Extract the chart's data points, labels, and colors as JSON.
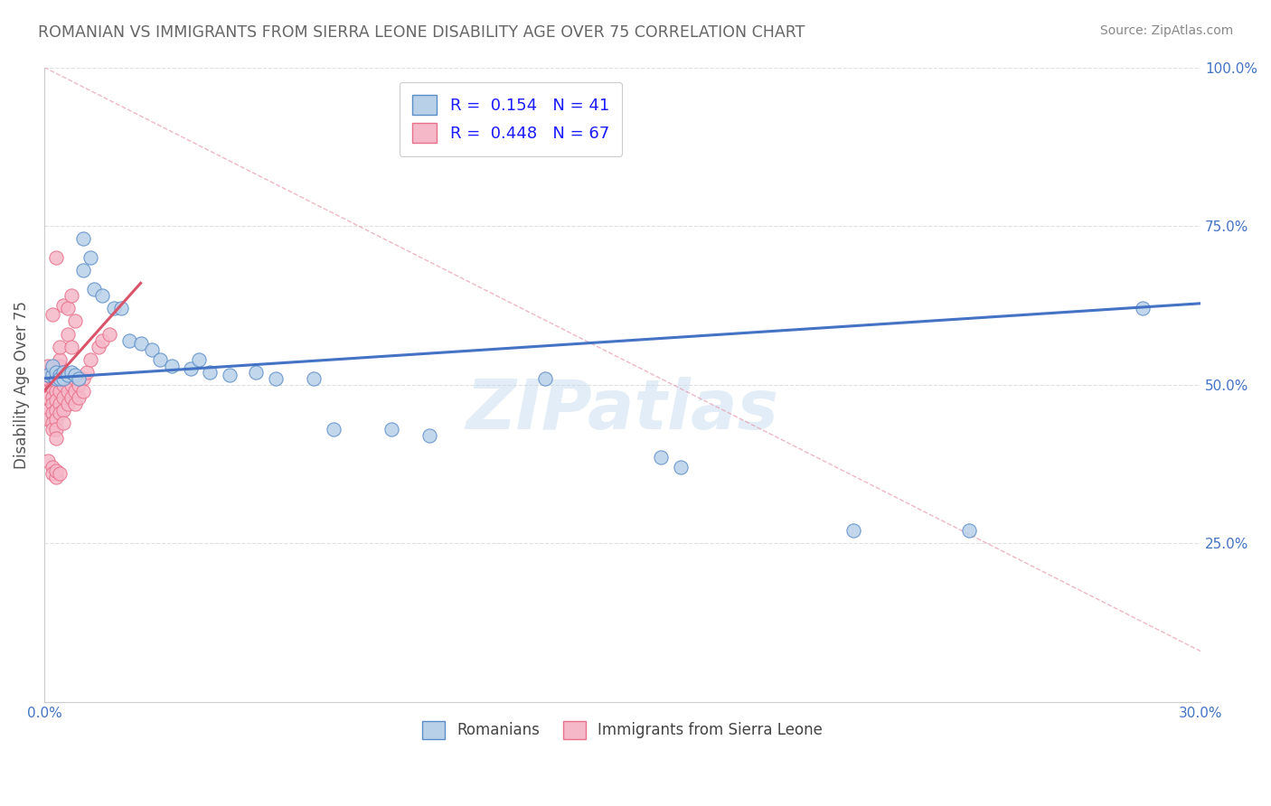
{
  "title": "ROMANIAN VS IMMIGRANTS FROM SIERRA LEONE DISABILITY AGE OVER 75 CORRELATION CHART",
  "source": "Source: ZipAtlas.com",
  "ylabel": "Disability Age Over 75",
  "xlim": [
    0.0,
    0.3
  ],
  "ylim": [
    0.0,
    1.0
  ],
  "blue_r": 0.154,
  "blue_n": 41,
  "pink_r": 0.448,
  "pink_n": 67,
  "blue_color": "#b8d0e8",
  "pink_color": "#f5b8c8",
  "blue_edge_color": "#5b8dc8",
  "pink_edge_color": "#e8708a",
  "blue_line_color": "#4472c4",
  "pink_line_color": "#d9546a",
  "diag_color": "#f0a0b0",
  "watermark": "ZIPatlas",
  "background_color": "#ffffff",
  "grid_color": "#dddddd",
  "blue_scatter": [
    [
      0.001,
      0.515
    ],
    [
      0.002,
      0.515
    ],
    [
      0.002,
      0.53
    ],
    [
      0.003,
      0.51
    ],
    [
      0.003,
      0.52
    ],
    [
      0.004,
      0.515
    ],
    [
      0.004,
      0.51
    ],
    [
      0.005,
      0.52
    ],
    [
      0.005,
      0.51
    ],
    [
      0.006,
      0.515
    ],
    [
      0.007,
      0.52
    ],
    [
      0.008,
      0.515
    ],
    [
      0.009,
      0.51
    ],
    [
      0.01,
      0.68
    ],
    [
      0.01,
      0.73
    ],
    [
      0.012,
      0.7
    ],
    [
      0.013,
      0.65
    ],
    [
      0.015,
      0.64
    ],
    [
      0.018,
      0.62
    ],
    [
      0.02,
      0.62
    ],
    [
      0.022,
      0.57
    ],
    [
      0.025,
      0.565
    ],
    [
      0.028,
      0.555
    ],
    [
      0.03,
      0.54
    ],
    [
      0.033,
      0.53
    ],
    [
      0.038,
      0.525
    ],
    [
      0.04,
      0.54
    ],
    [
      0.043,
      0.52
    ],
    [
      0.048,
      0.515
    ],
    [
      0.055,
      0.52
    ],
    [
      0.06,
      0.51
    ],
    [
      0.07,
      0.51
    ],
    [
      0.075,
      0.43
    ],
    [
      0.09,
      0.43
    ],
    [
      0.1,
      0.42
    ],
    [
      0.13,
      0.51
    ],
    [
      0.16,
      0.385
    ],
    [
      0.165,
      0.37
    ],
    [
      0.21,
      0.27
    ],
    [
      0.24,
      0.27
    ],
    [
      0.285,
      0.62
    ]
  ],
  "pink_scatter": [
    [
      0.001,
      0.5
    ],
    [
      0.001,
      0.51
    ],
    [
      0.001,
      0.52
    ],
    [
      0.001,
      0.49
    ],
    [
      0.001,
      0.48
    ],
    [
      0.001,
      0.53
    ],
    [
      0.001,
      0.46
    ],
    [
      0.001,
      0.445
    ],
    [
      0.002,
      0.51
    ],
    [
      0.002,
      0.525
    ],
    [
      0.002,
      0.495
    ],
    [
      0.002,
      0.48
    ],
    [
      0.002,
      0.47
    ],
    [
      0.002,
      0.455
    ],
    [
      0.002,
      0.44
    ],
    [
      0.002,
      0.43
    ],
    [
      0.002,
      0.61
    ],
    [
      0.003,
      0.52
    ],
    [
      0.003,
      0.505
    ],
    [
      0.003,
      0.49
    ],
    [
      0.003,
      0.475
    ],
    [
      0.003,
      0.46
    ],
    [
      0.003,
      0.445
    ],
    [
      0.003,
      0.43
    ],
    [
      0.003,
      0.415
    ],
    [
      0.003,
      0.7
    ],
    [
      0.004,
      0.53
    ],
    [
      0.004,
      0.51
    ],
    [
      0.004,
      0.49
    ],
    [
      0.004,
      0.47
    ],
    [
      0.004,
      0.54
    ],
    [
      0.004,
      0.56
    ],
    [
      0.004,
      0.455
    ],
    [
      0.005,
      0.52
    ],
    [
      0.005,
      0.5
    ],
    [
      0.005,
      0.48
    ],
    [
      0.005,
      0.46
    ],
    [
      0.005,
      0.44
    ],
    [
      0.005,
      0.625
    ],
    [
      0.006,
      0.51
    ],
    [
      0.006,
      0.49
    ],
    [
      0.006,
      0.47
    ],
    [
      0.006,
      0.62
    ],
    [
      0.006,
      0.58
    ],
    [
      0.007,
      0.5
    ],
    [
      0.007,
      0.48
    ],
    [
      0.007,
      0.56
    ],
    [
      0.007,
      0.64
    ],
    [
      0.008,
      0.51
    ],
    [
      0.008,
      0.49
    ],
    [
      0.008,
      0.47
    ],
    [
      0.008,
      0.6
    ],
    [
      0.009,
      0.5
    ],
    [
      0.009,
      0.48
    ],
    [
      0.01,
      0.51
    ],
    [
      0.01,
      0.49
    ],
    [
      0.011,
      0.52
    ],
    [
      0.012,
      0.54
    ],
    [
      0.014,
      0.56
    ],
    [
      0.015,
      0.57
    ],
    [
      0.017,
      0.58
    ],
    [
      0.001,
      0.38
    ],
    [
      0.002,
      0.37
    ],
    [
      0.002,
      0.36
    ],
    [
      0.003,
      0.355
    ],
    [
      0.003,
      0.365
    ],
    [
      0.004,
      0.36
    ]
  ]
}
